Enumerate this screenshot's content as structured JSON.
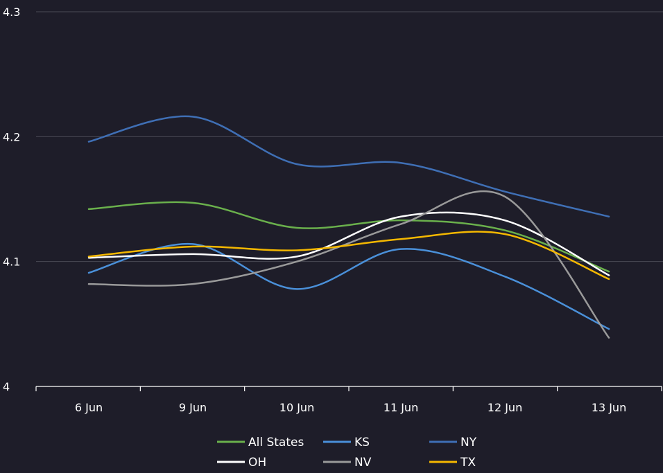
{
  "chart_data": {
    "type": "line",
    "categories": [
      "6 Jun",
      "9 Jun",
      "10 Jun",
      "11 Jun",
      "12 Jun",
      "13 Jun"
    ],
    "ylim": [
      4,
      4.3
    ],
    "yticks": [
      "4",
      "4.1",
      "4.2",
      "4.3"
    ],
    "grid": true,
    "legend_position": "bottom",
    "series": [
      {
        "name": "All States",
        "color": "#6ab04c",
        "values": [
          4.142,
          4.147,
          4.127,
          4.133,
          4.125,
          4.092
        ]
      },
      {
        "name": "KS",
        "color": "#4a90d9",
        "values": [
          4.091,
          4.114,
          4.078,
          4.11,
          4.088,
          4.046
        ]
      },
      {
        "name": "NY",
        "color": "#3f6fb5",
        "values": [
          4.196,
          4.216,
          4.178,
          4.179,
          4.156,
          4.136
        ]
      },
      {
        "name": "OH",
        "color": "#ffffff",
        "values": [
          4.103,
          4.106,
          4.104,
          4.136,
          4.133,
          4.089
        ]
      },
      {
        "name": "NV",
        "color": "#9a9a9a",
        "values": [
          4.082,
          4.082,
          4.1,
          4.13,
          4.152,
          4.039
        ]
      },
      {
        "name": "TX",
        "color": "#f5b800",
        "values": [
          4.104,
          4.112,
          4.109,
          4.118,
          4.122,
          4.086
        ]
      }
    ]
  }
}
